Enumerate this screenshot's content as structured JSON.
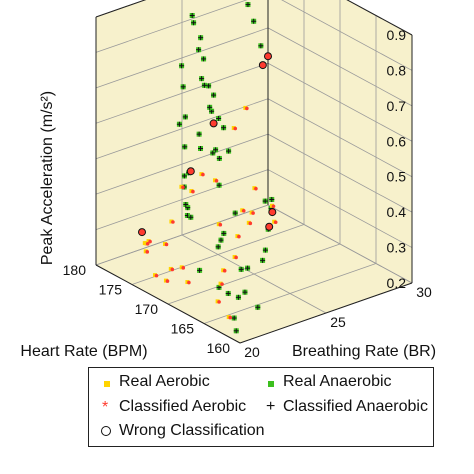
{
  "chart_data": {
    "type": "scatter3d",
    "title": "",
    "xlabel": "Heart Rate (BPM)",
    "ylabel": "Breathing Rate (BR)",
    "zlabel": "Peak Acceleration (m/s²)",
    "xlim": [
      160,
      180
    ],
    "ylim": [
      20,
      30
    ],
    "zlim": [
      0.2,
      0.9
    ],
    "x_ticks": [
      "160",
      "165",
      "170",
      "175",
      "180"
    ],
    "y_ticks": [
      "20",
      "25",
      "30"
    ],
    "z_ticks": [
      "0.2",
      "0.3",
      "0.4",
      "0.5",
      "0.6",
      "0.7",
      "0.8",
      "0.9"
    ],
    "grid": true,
    "legend_position": "bottom",
    "legend": [
      "Real Aerobic",
      "Real Anaerobic",
      "Classified Aerobic",
      "Classified Anaerobic",
      "Wrong Classification"
    ],
    "colors": {
      "aerobic": "#ffd400",
      "anaerobic": "#3cbf1e",
      "classified_aerobic": "#ff3b2f",
      "classified_anaerobic": "#111111",
      "pane": "#f7f1cc",
      "grid": "#9a9a9a"
    },
    "series": [
      {
        "name": "Real Anaerobic",
        "points": [
          [
            170.5,
            21.0,
            0.85
          ],
          [
            171.0,
            21.3,
            0.78
          ],
          [
            169.5,
            20.8,
            0.72
          ],
          [
            172.0,
            21.5,
            0.66
          ],
          [
            171.5,
            21.6,
            0.6
          ],
          [
            170.0,
            21.2,
            0.55
          ],
          [
            172.5,
            22.0,
            0.5
          ],
          [
            173.0,
            22.2,
            0.46
          ],
          [
            171.8,
            21.9,
            0.42
          ],
          [
            173.5,
            22.5,
            0.4
          ],
          [
            172.8,
            22.3,
            0.38
          ],
          [
            174.0,
            23.0,
            0.35
          ],
          [
            175.0,
            23.5,
            0.9
          ],
          [
            176.0,
            24.0,
            0.86
          ],
          [
            175.5,
            24.2,
            0.82
          ],
          [
            176.5,
            24.5,
            0.77
          ],
          [
            177.0,
            25.0,
            0.73
          ],
          [
            176.8,
            24.8,
            0.68
          ],
          [
            177.5,
            25.5,
            0.64
          ],
          [
            178.0,
            26.0,
            0.6
          ],
          [
            177.8,
            25.8,
            0.56
          ],
          [
            178.5,
            26.5,
            0.52
          ],
          [
            179.0,
            27.0,
            0.48
          ],
          [
            178.2,
            26.2,
            0.44
          ],
          [
            179.5,
            27.5,
            0.4
          ],
          [
            174.5,
            24.0,
            0.7
          ],
          [
            175.2,
            24.6,
            0.62
          ],
          [
            173.8,
            23.4,
            0.58
          ],
          [
            174.8,
            23.9,
            0.52
          ],
          [
            176.2,
            25.2,
            0.47
          ],
          [
            177.2,
            26.0,
            0.43
          ],
          [
            175.8,
            25.4,
            0.38
          ],
          [
            178.8,
            28.0,
            0.88
          ],
          [
            179.2,
            28.5,
            0.8
          ],
          [
            179.6,
            29.0,
            0.74
          ],
          [
            179.8,
            29.5,
            0.66
          ],
          [
            168.0,
            21.0,
            0.3
          ],
          [
            166.5,
            21.5,
            0.26
          ],
          [
            165.0,
            22.0,
            0.24
          ],
          [
            163.5,
            22.5,
            0.22
          ],
          [
            167.0,
            23.0,
            0.28
          ],
          [
            168.5,
            24.0,
            0.25
          ],
          [
            170.0,
            25.5,
            0.23
          ],
          [
            172.0,
            26.5,
            0.22
          ],
          [
            174.0,
            27.5,
            0.24
          ],
          [
            176.0,
            28.5,
            0.26
          ],
          [
            169.0,
            22.5,
            0.33
          ],
          [
            171.0,
            23.5,
            0.31
          ],
          [
            173.0,
            24.5,
            0.29
          ],
          [
            175.0,
            26.0,
            0.3
          ],
          [
            162.0,
            20.5,
            0.24
          ],
          [
            161.0,
            20.2,
            0.22
          ],
          [
            164.5,
            21.2,
            0.27
          ],
          [
            166.0,
            22.8,
            0.23
          ],
          [
            178.0,
            29.0,
            0.25
          ],
          [
            179.0,
            29.8,
            0.23
          ]
        ]
      },
      {
        "name": "Real Aerobic",
        "points": [
          [
            176.0,
            21.0,
            0.32
          ],
          [
            175.0,
            20.8,
            0.28
          ],
          [
            174.0,
            21.5,
            0.3
          ],
          [
            177.0,
            21.8,
            0.27
          ],
          [
            178.0,
            22.0,
            0.25
          ],
          [
            173.0,
            20.5,
            0.24
          ],
          [
            172.0,
            21.0,
            0.26
          ],
          [
            179.0,
            22.5,
            0.23
          ],
          [
            171.0,
            20.3,
            0.25
          ],
          [
            177.5,
            24.5,
            0.36
          ],
          [
            178.5,
            25.5,
            0.38
          ],
          [
            179.0,
            26.5,
            0.34
          ],
          [
            176.5,
            23.5,
            0.4
          ],
          [
            175.5,
            22.5,
            0.33
          ],
          [
            170.0,
            20.8,
            0.29
          ],
          [
            168.5,
            20.5,
            0.27
          ],
          [
            167.0,
            21.8,
            0.26
          ],
          [
            165.5,
            21.0,
            0.24
          ],
          [
            163.0,
            20.6,
            0.23
          ],
          [
            169.5,
            23.0,
            0.25
          ],
          [
            171.5,
            24.5,
            0.24
          ],
          [
            173.5,
            25.5,
            0.26
          ],
          [
            175.5,
            27.0,
            0.25
          ],
          [
            177.5,
            28.0,
            0.24
          ],
          [
            179.5,
            29.0,
            0.27
          ],
          [
            174.5,
            26.2,
            0.31
          ],
          [
            172.5,
            24.0,
            0.33
          ],
          [
            166.0,
            24.5,
            0.4
          ],
          [
            167.5,
            25.0,
            0.42
          ],
          [
            179.5,
            27.8,
            0.46
          ],
          [
            179.8,
            28.6,
            0.5
          ]
        ]
      },
      {
        "name": "Wrong Classification",
        "points": [
          [
            176.0,
            21.0,
            0.32
          ],
          [
            174.0,
            23.0,
            0.48
          ],
          [
            178.0,
            26.0,
            0.52
          ],
          [
            165.5,
            24.0,
            0.4
          ],
          [
            166.5,
            24.6,
            0.42
          ],
          [
            180.0,
            30.0,
            0.62
          ],
          [
            180.0,
            29.7,
            0.6
          ]
        ]
      }
    ]
  },
  "legend_labels": {
    "real_aerobic": "Real Aerobic",
    "real_anaerobic": "Real Anaerobic",
    "classified_aerobic": "Classified Aerobic",
    "classified_anaerobic": "Classified Anaerobic",
    "wrong": "Wrong Classification"
  }
}
